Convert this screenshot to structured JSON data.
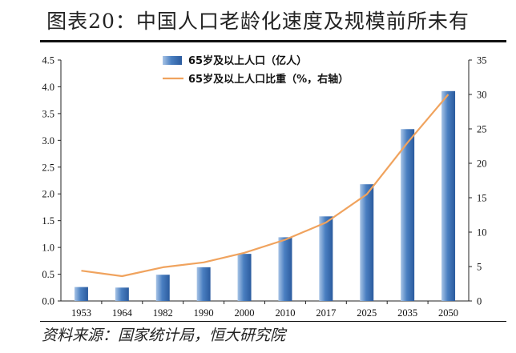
{
  "title": "图表20：中国人口老龄化速度及规模前所未有",
  "source": "资料来源：国家统计局，恒大研究院",
  "chart_data": {
    "type": "bar",
    "categories": [
      "1953",
      "1964",
      "1982",
      "1990",
      "2000",
      "2010",
      "2017",
      "2025",
      "2035",
      "2050"
    ],
    "series": [
      {
        "name": "65岁及以上人口（亿人）",
        "type": "bar",
        "axis": "left",
        "color": "#4a7fc1",
        "values": [
          0.26,
          0.25,
          0.49,
          0.63,
          0.88,
          1.19,
          1.58,
          2.18,
          3.21,
          3.92
        ]
      },
      {
        "name": "65岁及以上人口比重（%，右轴）",
        "type": "line",
        "axis": "right",
        "color": "#f0a35e",
        "values": [
          4.4,
          3.6,
          4.9,
          5.6,
          7.0,
          8.9,
          11.4,
          15.5,
          23.0,
          30.0
        ]
      }
    ],
    "y_left": {
      "min": 0,
      "max": 4.5,
      "step": 0.5,
      "ticks": [
        "0.0",
        "0.5",
        "1.0",
        "1.5",
        "2.0",
        "2.5",
        "3.0",
        "3.5",
        "4.0",
        "4.5"
      ]
    },
    "y_right": {
      "min": 0,
      "max": 35,
      "step": 5,
      "ticks": [
        "0",
        "5",
        "10",
        "15",
        "20",
        "25",
        "30",
        "35"
      ]
    },
    "legend_position": "top-center",
    "grid": false
  }
}
